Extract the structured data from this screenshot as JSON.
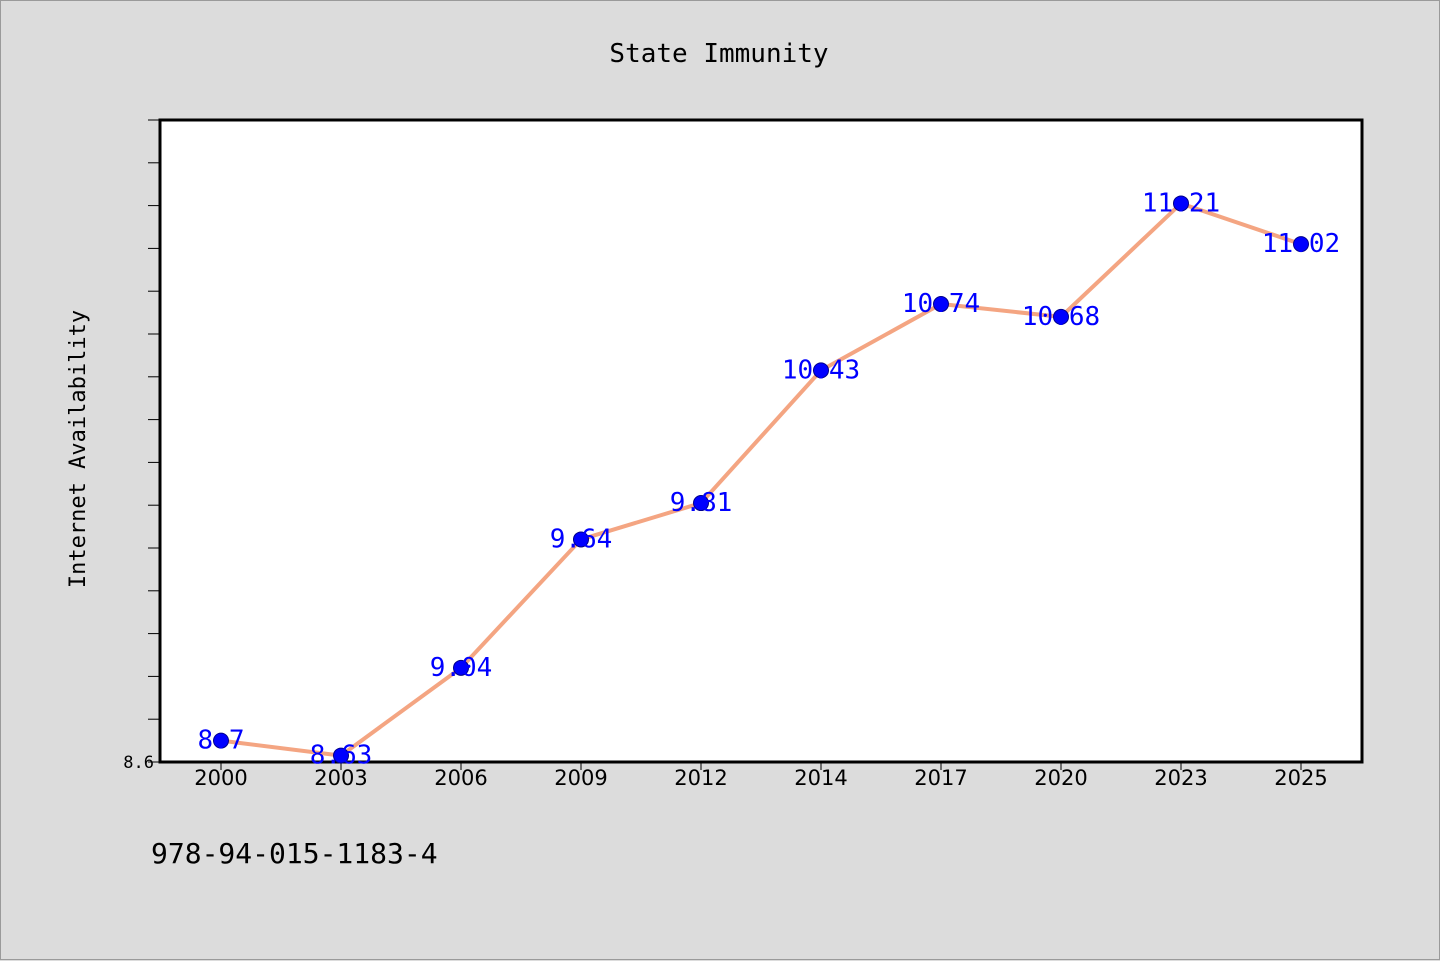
{
  "chart_data": {
    "type": "line",
    "title": "State Immunity",
    "xlabel": "",
    "ylabel": "Internet Availability",
    "categories": [
      "2000",
      "2003",
      "2006",
      "2009",
      "2012",
      "2014",
      "2017",
      "2020",
      "2023",
      "2025"
    ],
    "series": [
      {
        "values": [
          8.7,
          8.63,
          9.04,
          9.64,
          9.81,
          10.43,
          10.74,
          10.68,
          11.21,
          11.02
        ]
      }
    ],
    "data_labels": [
      "8.7",
      "8.63",
      "9.04",
      "9.64",
      "9.81",
      "10.43",
      "10.74",
      "10.68",
      "11.21",
      "11.02"
    ],
    "y_tick_labels": [
      "8.6"
    ],
    "ylim": [
      8.6,
      11.6
    ],
    "grid": false,
    "colors": {
      "line": "#f4a582",
      "marker": "#0000ff",
      "label": "#0000ff",
      "background": "#dcdcdc",
      "plot_area": "#ffffff"
    }
  },
  "footer_text": "978-94-015-1183-4"
}
